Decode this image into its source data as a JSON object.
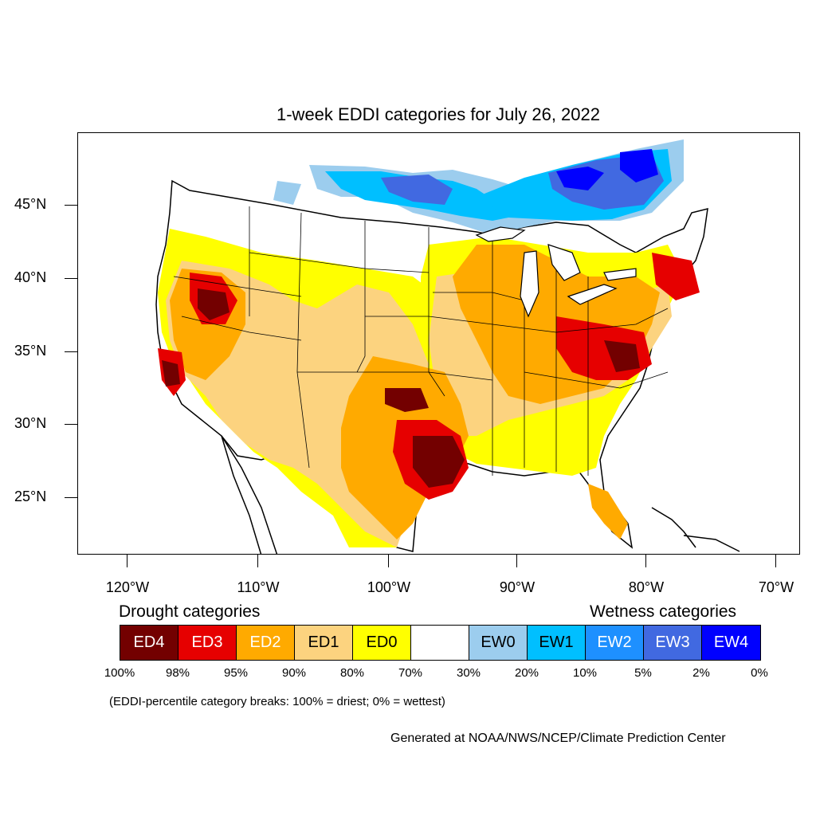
{
  "title": "1-week EDDI categories for July 26, 2022",
  "lat_labels": [
    "45°N",
    "40°N",
    "35°N",
    "30°N",
    "25°N"
  ],
  "lon_labels": [
    "120°W",
    "110°W",
    "100°W",
    "90°W",
    "80°W",
    "70°W"
  ],
  "legend": {
    "drought_heading": "Drought categories",
    "wetness_heading": "Wetness categories",
    "categories": [
      {
        "label": "ED4",
        "color": "#730000",
        "text_color": "#ffffff"
      },
      {
        "label": "ED3",
        "color": "#e60000",
        "text_color": "#ffffff"
      },
      {
        "label": "ED2",
        "color": "#ffaa00",
        "text_color": "#ffffff"
      },
      {
        "label": "ED1",
        "color": "#fcd37f",
        "text_color": "#000000"
      },
      {
        "label": "ED0",
        "color": "#ffff00",
        "text_color": "#000000"
      },
      {
        "label": "",
        "color": "#ffffff",
        "text_color": "#000000"
      },
      {
        "label": "EW0",
        "color": "#9ccdee",
        "text_color": "#000000"
      },
      {
        "label": "EW1",
        "color": "#00bfff",
        "text_color": "#000000"
      },
      {
        "label": "EW2",
        "color": "#1e90ff",
        "text_color": "#ffffff"
      },
      {
        "label": "EW3",
        "color": "#4169e1",
        "text_color": "#ffffff"
      },
      {
        "label": "EW4",
        "color": "#0000ff",
        "text_color": "#ffffff"
      }
    ],
    "percentiles": [
      "100%",
      "98%",
      "95%",
      "90%",
      "80%",
      "70%",
      "30%",
      "20%",
      "10%",
      "5%",
      "2%",
      "0%"
    ]
  },
  "note": "(EDDI-percentile category breaks: 100% = driest; 0% = wettest)",
  "credit": "Generated at NOAA/NWS/NCEP/Climate Prediction Center"
}
